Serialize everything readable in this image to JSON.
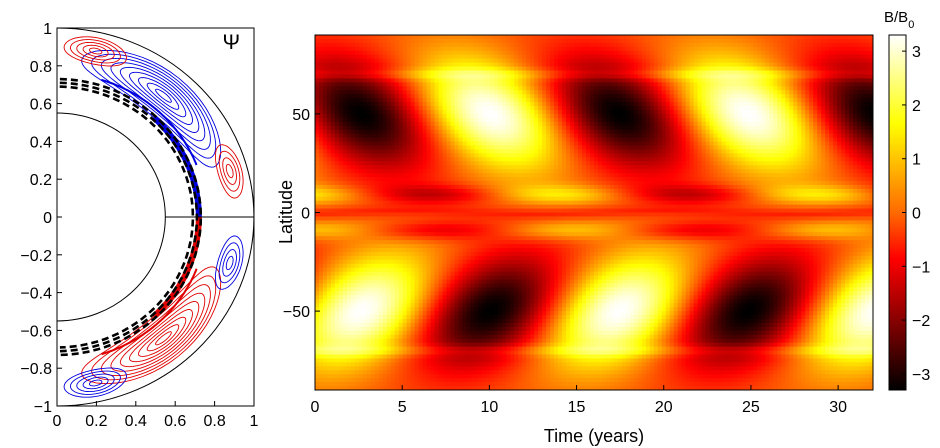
{
  "chart_data": [
    {
      "type": "contour",
      "panel": "meridional-stream-function",
      "title": "Ψ",
      "xlim": [
        0,
        1
      ],
      "ylim": [
        -1,
        1
      ],
      "xticks": [
        "0",
        "0.2",
        "0.4",
        "0.6",
        "0.8",
        "1"
      ],
      "yticks": [
        "1",
        "0.8",
        "0.6",
        "0.4",
        "0.2",
        "0",
        "−0.2",
        "−0.4",
        "−0.6",
        "−0.8",
        "−1"
      ],
      "inner_core_radius": 0.55,
      "tachocline_radius": 0.7,
      "colors": {
        "positive": "#e00000",
        "negative": "#0000e0",
        "boundary": "#000000"
      }
    },
    {
      "type": "heatmap",
      "panel": "butterfly-diagram",
      "xlabel": "Time (years)",
      "ylabel": "Latitude",
      "xlim": [
        0,
        32
      ],
      "ylim": [
        -90,
        90
      ],
      "xticks": [
        "0",
        "5",
        "10",
        "15",
        "20",
        "25",
        "30"
      ],
      "yticks": [
        "50",
        "0",
        "−50"
      ],
      "cycle_period_years": 14.8,
      "wing_peak_latitude": 50,
      "polar_band_latitude": 70,
      "colorbar": {
        "title_main": "B/B",
        "title_sub": "0",
        "range": [
          -3.3,
          3.3
        ],
        "ticks": [
          "3",
          "2",
          "1",
          "0",
          "−1",
          "−2",
          "−3"
        ],
        "colormap": "hot"
      }
    }
  ]
}
